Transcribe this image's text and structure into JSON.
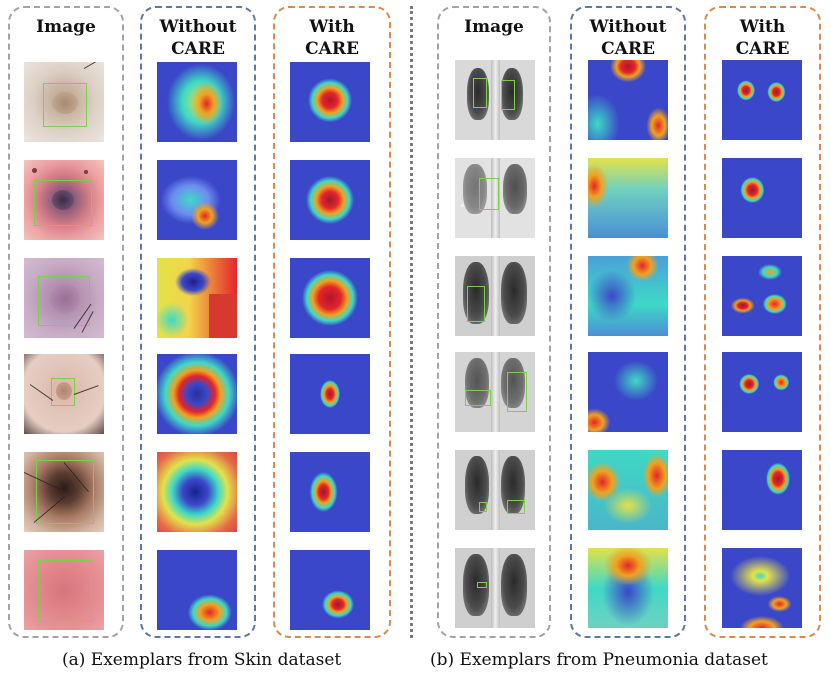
{
  "columns": {
    "skin_image": "Image",
    "skin_without": "Without\nCARE",
    "skin_with": "With\nCARE",
    "pneu_image": "Image",
    "pneu_without": "Without\nCARE",
    "pneu_with": "With\nCARE"
  },
  "captions": {
    "left": "(a) Exemplars from Skin dataset",
    "right": "(b) Exemplars from Pneumonia dataset"
  },
  "colors": {
    "gray_border": "#a3a3a3",
    "blue_border": "#5e77a7",
    "orange_border": "#d98a4e",
    "bbox_green": "#7bd04b",
    "heat_low": "#3b47c9",
    "heat_mid": "#3fd9c6",
    "heat_high": "#e3252b"
  }
}
